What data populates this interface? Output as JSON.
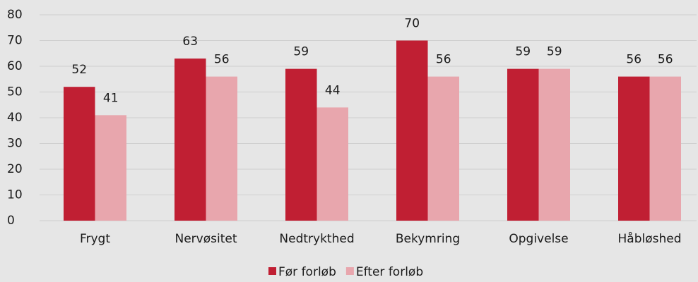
{
  "chart_data": {
    "type": "bar",
    "categories": [
      "Frygt",
      "Nervøsitet",
      "Nedtrykthed",
      "Bekymring",
      "Opgivelse",
      "Håbløshed"
    ],
    "series": [
      {
        "name": "Før forløb",
        "color": "#c01f33",
        "values": [
          52,
          63,
          59,
          70,
          59,
          56
        ]
      },
      {
        "name": "Efter forløb",
        "color": "#e8a6ad",
        "values": [
          41,
          56,
          44,
          56,
          59,
          56
        ]
      }
    ],
    "ylim": [
      0,
      80
    ],
    "yticks": [
      0,
      10,
      20,
      30,
      40,
      50,
      60,
      70,
      80
    ],
    "grid": true,
    "legend": "bottom"
  }
}
